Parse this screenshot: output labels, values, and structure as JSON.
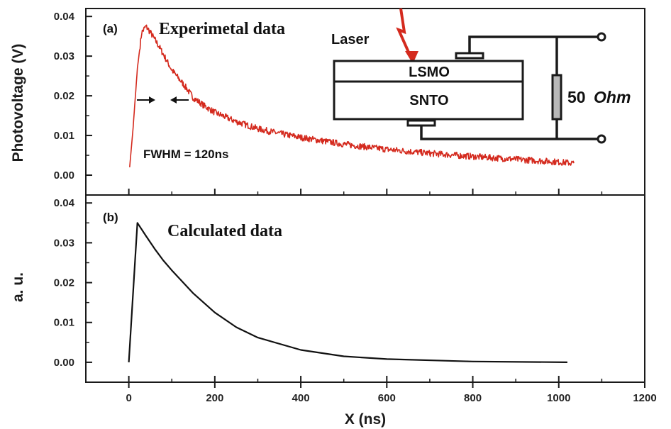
{
  "chart_data": [
    {
      "panel": "(a)",
      "type": "line",
      "title": "Experimetal data",
      "ylabel": "Photovoltage (V)",
      "xlim": [
        -100,
        1200
      ],
      "ylim": [
        -0.005,
        0.042
      ],
      "yticks": [
        "0.00",
        "0.01",
        "0.02",
        "0.03",
        "0.04"
      ],
      "annotation": "FWHM = 120ns",
      "series": [
        {
          "color": "#d42a1e",
          "noisy": true,
          "x": [
            2,
            10,
            20,
            30,
            40,
            50,
            70,
            100,
            130,
            150,
            175,
            200,
            250,
            300,
            350,
            400,
            500,
            600,
            700,
            800,
            900,
            1000,
            1035
          ],
          "y": [
            0.002,
            0.012,
            0.027,
            0.036,
            0.0375,
            0.036,
            0.0325,
            0.0265,
            0.0225,
            0.0195,
            0.0175,
            0.0158,
            0.0135,
            0.0117,
            0.0105,
            0.0095,
            0.0078,
            0.0065,
            0.0055,
            0.0047,
            0.004,
            0.0033,
            0.003
          ]
        }
      ],
      "inset": {
        "laser_label": "Laser",
        "top_layer": "LSMO",
        "bottom_layer": "SNTO",
        "resistor_value": "50",
        "resistor_unit": "Ohm"
      }
    },
    {
      "panel": "(b)",
      "type": "line",
      "title": "Calculated data",
      "xlabel": "X (ns)",
      "ylabel": "a. u.",
      "xlim": [
        -100,
        1200
      ],
      "ylim": [
        -0.005,
        0.042
      ],
      "xticks": [
        "0",
        "200",
        "400",
        "600",
        "800",
        "1000",
        "1200"
      ],
      "yticks": [
        "0.00",
        "0.01",
        "0.02",
        "0.03",
        "0.04"
      ],
      "series": [
        {
          "color": "#111111",
          "x": [
            0,
            20,
            40,
            60,
            80,
            100,
            150,
            200,
            250,
            300,
            400,
            500,
            600,
            800,
            1020
          ],
          "y": [
            0.0,
            0.035,
            0.0317,
            0.0285,
            0.0256,
            0.0231,
            0.0173,
            0.0125,
            0.0088,
            0.0062,
            0.0031,
            0.0015,
            0.0008,
            0.0002,
            0.0
          ]
        }
      ]
    }
  ]
}
